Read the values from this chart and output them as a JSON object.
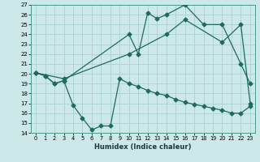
{
  "xlabel": "Humidex (Indice chaleur)",
  "bg_color": "#cce8e8",
  "grid_color": "#aed4d4",
  "line_color": "#1e6b5e",
  "xlim": [
    -0.5,
    23.5
  ],
  "ylim": [
    14,
    27
  ],
  "xticks": [
    0,
    1,
    2,
    3,
    4,
    5,
    6,
    7,
    8,
    9,
    10,
    11,
    12,
    13,
    14,
    15,
    16,
    17,
    18,
    19,
    20,
    21,
    22,
    23
  ],
  "yticks": [
    14,
    15,
    16,
    17,
    18,
    19,
    20,
    21,
    22,
    23,
    24,
    25,
    26,
    27
  ],
  "line1_x": [
    0,
    1,
    2,
    3,
    10,
    11,
    12,
    13,
    14,
    16,
    18,
    20,
    22,
    23
  ],
  "line1_y": [
    20.1,
    19.8,
    19.0,
    19.3,
    24.0,
    22.0,
    26.2,
    25.6,
    26.0,
    27.0,
    25.0,
    25.0,
    21.0,
    19.0
  ],
  "line2_x": [
    0,
    3,
    10,
    14,
    16,
    20,
    22,
    23
  ],
  "line2_y": [
    20.1,
    19.5,
    22.0,
    24.0,
    25.5,
    23.2,
    25.0,
    17.0
  ],
  "line3_x": [
    0,
    1,
    2,
    3,
    4,
    5,
    6,
    7,
    8,
    9,
    10,
    11,
    12,
    13,
    14,
    15,
    16,
    17,
    18,
    19,
    20,
    21,
    22,
    23
  ],
  "line3_y": [
    20.1,
    19.8,
    19.0,
    19.3,
    16.8,
    15.5,
    14.3,
    14.7,
    14.7,
    19.5,
    19.0,
    18.7,
    18.3,
    18.0,
    17.8,
    17.4,
    17.1,
    16.9,
    16.7,
    16.5,
    16.3,
    16.0,
    16.0,
    16.7
  ]
}
